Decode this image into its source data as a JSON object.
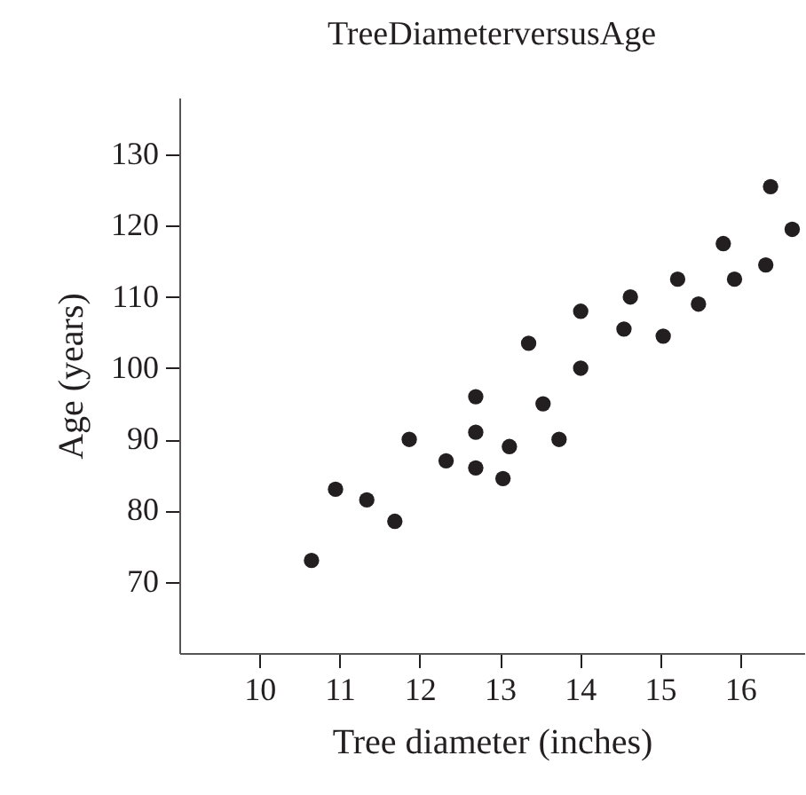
{
  "chart_data": {
    "type": "scatter",
    "title": "TreeDiameterversusAge",
    "xlabel": "Tree diameter (inches)",
    "ylabel": "Age (years)",
    "x": [
      10.65,
      10.95,
      11.34,
      11.69,
      11.87,
      12.33,
      12.7,
      12.7,
      13.12,
      13.04,
      13.74,
      12.7,
      13.54,
      13.36,
      14.01,
      14.01,
      14.55,
      14.63,
      15.04,
      15.22,
      15.48,
      15.79,
      15.93,
      16.32,
      16.38,
      16.65
    ],
    "series": [
      {
        "color": "#231f20",
        "values": [
          73,
          83,
          81.5,
          78.5,
          90,
          87,
          91,
          86,
          89,
          84.5,
          90,
          96,
          95,
          103.5,
          100,
          108,
          105.5,
          110,
          104.5,
          112.5,
          109,
          117.5,
          112.5,
          114.5,
          125.5,
          119.5
        ]
      }
    ],
    "xlim": [
      9,
      16.8
    ],
    "ylim": [
      60,
      138
    ],
    "xticks": [
      10,
      11,
      12,
      13,
      14,
      15,
      16
    ],
    "yticks": [
      70,
      80,
      90,
      100,
      110,
      120,
      130
    ],
    "grid": false
  }
}
